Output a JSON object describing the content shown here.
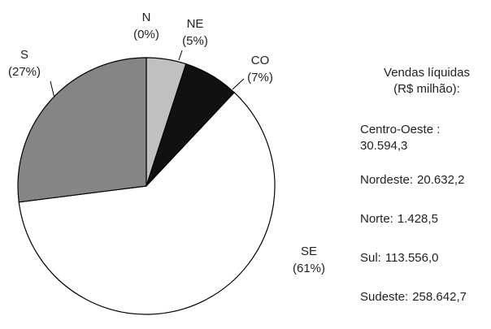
{
  "chart_data": {
    "type": "pie",
    "categories": [
      "N",
      "NE",
      "CO",
      "SE",
      "S"
    ],
    "values": [
      0,
      5,
      7,
      61,
      27
    ],
    "value_labels": [
      "(0%)",
      "(5%)",
      "(7%)",
      "(61%)",
      "(27%)"
    ],
    "colors": [
      "#333333",
      "#c0c0c0",
      "#111111",
      "#ffffff",
      "#858585"
    ],
    "side_title": [
      "Vendas líquidas",
      "(R$ milhão):"
    ],
    "sales": [
      {
        "name": "Centro-Oeste :",
        "value": "30.594,3"
      },
      {
        "name": "Nordeste:",
        "value": "20.632,2"
      },
      {
        "name": "Norte:",
        "value": "1.428,5"
      },
      {
        "name": "Sul:",
        "value": "113.556,0"
      },
      {
        "name": "Sudeste:",
        "value": "258.642,7"
      }
    ]
  }
}
